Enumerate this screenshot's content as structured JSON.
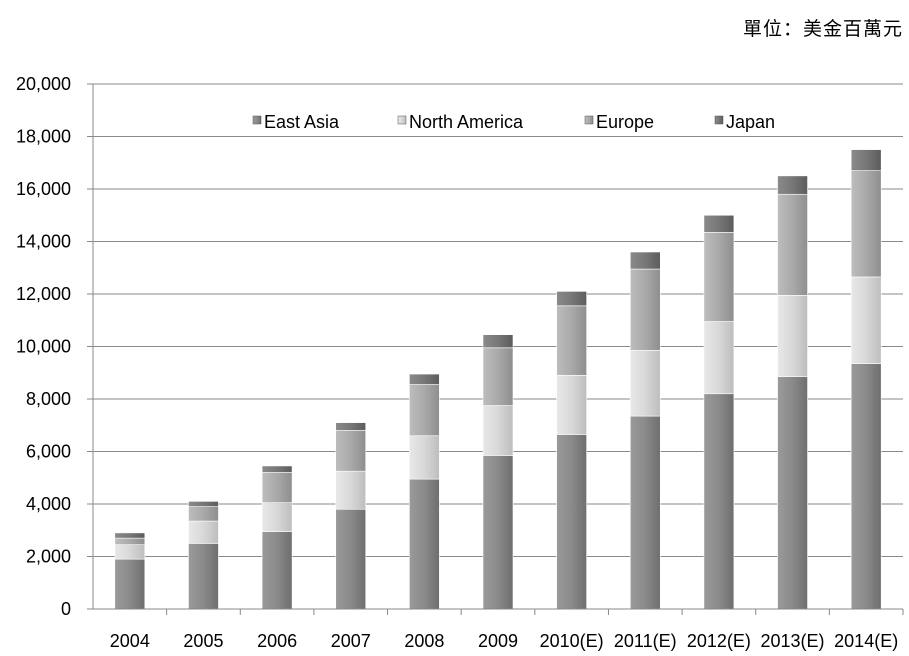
{
  "unit_note": "單位：美金百萬元",
  "chart_data": {
    "type": "bar",
    "stacked": true,
    "categories": [
      "2004",
      "2005",
      "2006",
      "2007",
      "2008",
      "2009",
      "2010(E)",
      "2011(E)",
      "2012(E)",
      "2013(E)",
      "2014(E)"
    ],
    "series": [
      {
        "name": "East Asia",
        "values": [
          1900,
          2500,
          2950,
          3800,
          4950,
          5850,
          6650,
          7350,
          8200,
          8850,
          9350
        ]
      },
      {
        "name": "North America",
        "values": [
          550,
          850,
          1100,
          1450,
          1650,
          1900,
          2250,
          2500,
          2750,
          3100,
          3300
        ]
      },
      {
        "name": "Europe",
        "values": [
          250,
          550,
          1150,
          1550,
          1950,
          2200,
          2650,
          3100,
          3400,
          3850,
          4050
        ]
      },
      {
        "name": "Japan",
        "values": [
          200,
          200,
          250,
          300,
          400,
          500,
          550,
          650,
          650,
          700,
          800
        ]
      }
    ],
    "ylim": [
      0,
      20000
    ],
    "yticks": [
      "0",
      "2,000",
      "4,000",
      "6,000",
      "8,000",
      "10,000",
      "12,000",
      "14,000",
      "16,000",
      "18,000",
      "20,000"
    ],
    "grid": true,
    "legend_position": "top-inside"
  },
  "colors": {
    "east_asia": "#8c8c8c",
    "north_america": "#dadada",
    "europe": "#a8a8a8",
    "japan": "#7a7a7a",
    "grid": "#8a8a8a",
    "axis": "#888888"
  }
}
